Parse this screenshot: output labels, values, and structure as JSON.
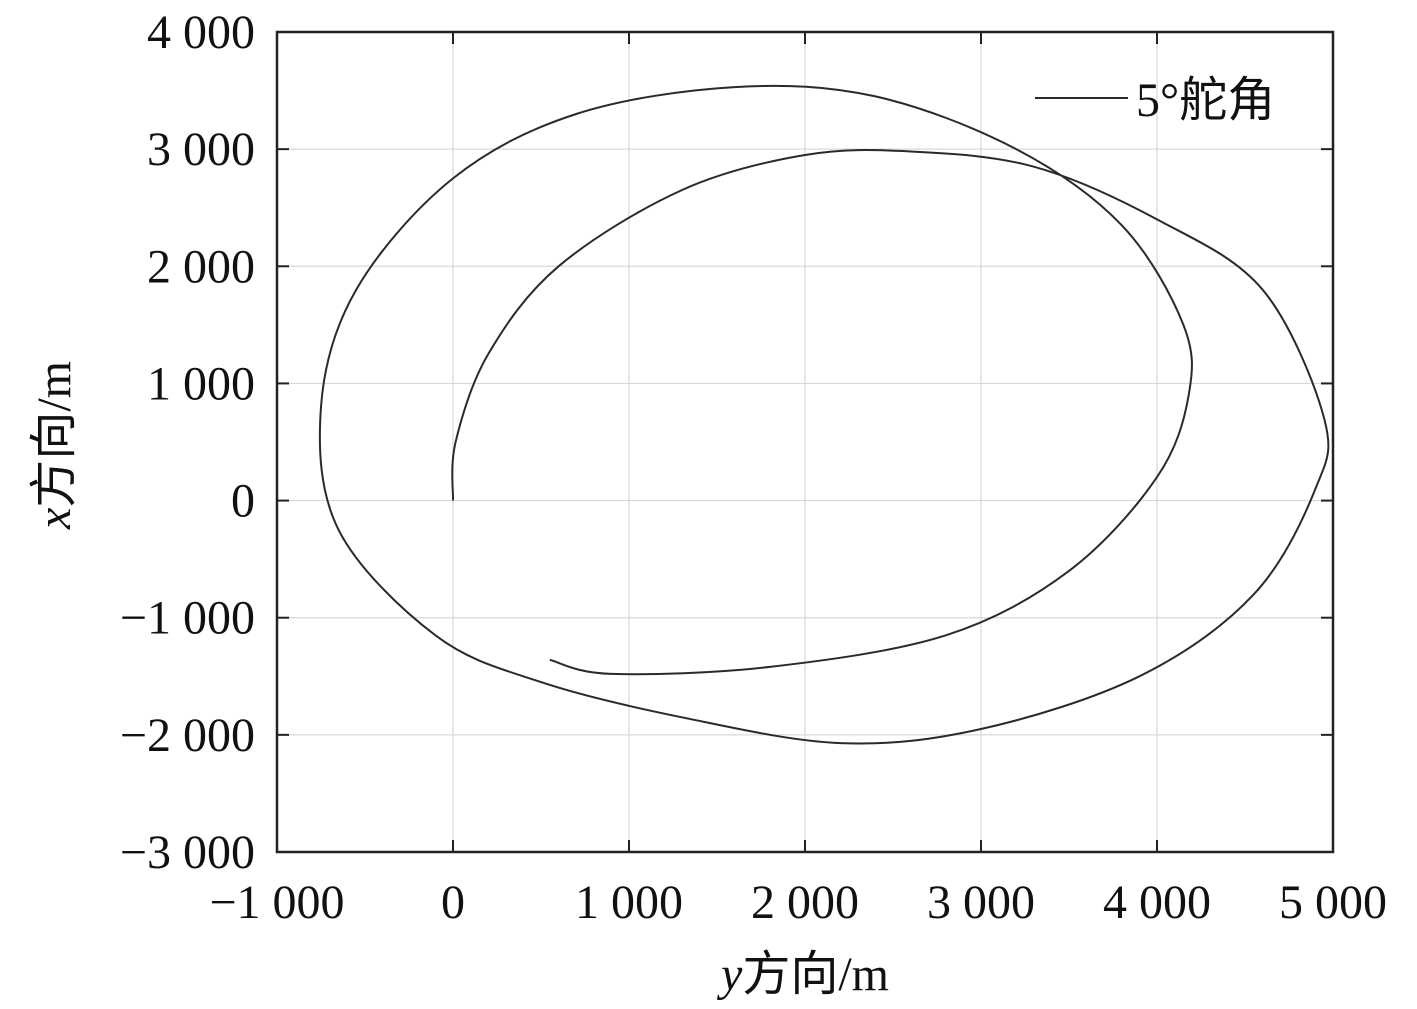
{
  "chart_data": {
    "type": "line",
    "xlabel_var": "y",
    "xlabel_text": "方向/m",
    "ylabel_var": "x",
    "ylabel_text": "方向/m",
    "xlim": [
      -1000,
      5000
    ],
    "ylim": [
      -3000,
      4000
    ],
    "x_ticks": [
      -1000,
      0,
      1000,
      2000,
      3000,
      4000,
      5000
    ],
    "x_tick_labels": [
      "−1 000",
      "0",
      "1 000",
      "2 000",
      "3 000",
      "4 000",
      "5 000"
    ],
    "y_ticks": [
      -3000,
      -2000,
      -1000,
      0,
      1000,
      2000,
      3000,
      4000
    ],
    "y_tick_labels": [
      "−3 000",
      "−2 000",
      "−1 000",
      "0",
      "1 000",
      "2 000",
      "3 000",
      "4 000"
    ],
    "grid": true,
    "legend_position": "top-right",
    "series": [
      {
        "name": "5°舵角",
        "color": "#2a2a2a",
        "points": [
          [
            0,
            0
          ],
          [
            15,
            500
          ],
          [
            200,
            1250
          ],
          [
            600,
            2000
          ],
          [
            1300,
            2650
          ],
          [
            2000,
            2950
          ],
          [
            2600,
            2980
          ],
          [
            3300,
            2850
          ],
          [
            4000,
            2400
          ],
          [
            4600,
            1800
          ],
          [
            4950,
            700
          ],
          [
            4900,
            100
          ],
          [
            4550,
            -800
          ],
          [
            3900,
            -1500
          ],
          [
            3000,
            -1950
          ],
          [
            2200,
            -2070
          ],
          [
            1300,
            -1850
          ],
          [
            500,
            -1550
          ],
          [
            -100,
            -1150
          ],
          [
            -650,
            -250
          ],
          [
            -750,
            800
          ],
          [
            -550,
            1800
          ],
          [
            0,
            2750
          ],
          [
            700,
            3300
          ],
          [
            1600,
            3530
          ],
          [
            2400,
            3450
          ],
          [
            3200,
            3000
          ],
          [
            3800,
            2350
          ],
          [
            4150,
            1500
          ],
          [
            4180,
            900
          ],
          [
            4000,
            200
          ],
          [
            3500,
            -600
          ],
          [
            2800,
            -1150
          ],
          [
            1800,
            -1420
          ],
          [
            900,
            -1480
          ],
          [
            550,
            -1360
          ]
        ]
      }
    ]
  }
}
